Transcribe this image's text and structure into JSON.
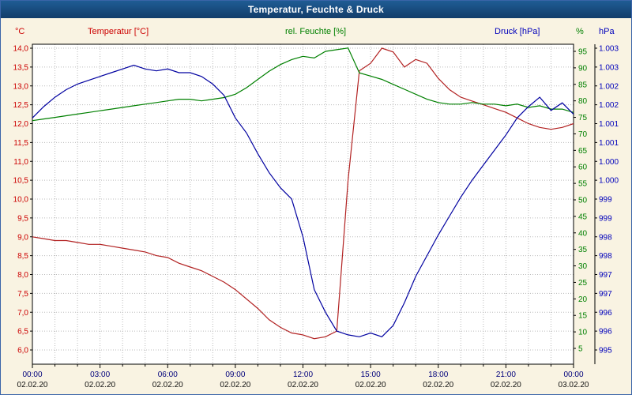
{
  "window": {
    "title": "Temperatur, Feuchte & Druck"
  },
  "colors": {
    "window_background": "#f9f3e2",
    "window_border": "#3a64a8",
    "titlebar_top": "#1f5c94",
    "titlebar_bottom": "#123d6a",
    "titlebar_text": "#ffffff",
    "plot_background": "#ffffff",
    "gridline": "#bbbbbb",
    "frame": "#000000",
    "time_label": "#00007b",
    "date_label": "#101010"
  },
  "chart_data": {
    "type": "line",
    "title": "Temperatur, Feuchte & Druck",
    "grid": "dotted, hourly vertical lines, 0.5-unit horizontal lines",
    "point_interval_minutes": 30,
    "x_start_hour": 0,
    "x_end_hour": 24,
    "x_axis": {
      "ticks": [
        {
          "time": "00:00",
          "date": "02.02.20"
        },
        {
          "time": "03:00",
          "date": "02.02.20"
        },
        {
          "time": "06:00",
          "date": "02.02.20"
        },
        {
          "time": "09:00",
          "date": "02.02.20"
        },
        {
          "time": "12:00",
          "date": "02.02.20"
        },
        {
          "time": "15:00",
          "date": "02.02.20"
        },
        {
          "time": "18:00",
          "date": "02.02.20"
        },
        {
          "time": "21:00",
          "date": "02.02.20"
        },
        {
          "time": "00:00",
          "date": "03.02.20"
        }
      ]
    },
    "axes": {
      "temperature": {
        "header": "Temperatur [°C]",
        "unit_label": "°C",
        "color": "#cc0000",
        "min": 6.0,
        "max": 14.0,
        "step": 0.5,
        "ticks": [
          "14,0",
          "13,5",
          "13,0",
          "12,5",
          "12,0",
          "11,5",
          "11,0",
          "10,5",
          "10,0",
          "9,5",
          "9,0",
          "8,5",
          "8,0",
          "7,5",
          "7,0",
          "6,5",
          "6,0"
        ]
      },
      "humidity": {
        "header": "rel. Feuchte [%]",
        "unit_label": "%",
        "color": "#008000",
        "min": 5,
        "max": 95,
        "step": 5,
        "ticks": [
          "95",
          "90",
          "85",
          "80",
          "75",
          "70",
          "65",
          "60",
          "55",
          "50",
          "45",
          "40",
          "35",
          "30",
          "25",
          "20",
          "15",
          "10",
          "5"
        ]
      },
      "pressure": {
        "header": "Druck [hPa]",
        "unit_label": "hPa",
        "color": "#0000bb",
        "min": 995.5,
        "max": 1003.5,
        "step": 0.5,
        "ticks": [
          "1.003",
          "1.003",
          "1.002",
          "1.002",
          "1.001",
          "1.001",
          "1.000",
          "1.000",
          "999",
          "999",
          "998",
          "998",
          "997",
          "997",
          "996",
          "996",
          "995"
        ]
      }
    },
    "series": [
      {
        "name": "Temperatur",
        "unit": "°C",
        "axis": "temperature",
        "color": "#b22222",
        "values": [
          9.0,
          8.95,
          8.9,
          8.9,
          8.85,
          8.8,
          8.8,
          8.75,
          8.7,
          8.65,
          8.6,
          8.5,
          8.45,
          8.3,
          8.2,
          8.1,
          7.95,
          7.8,
          7.6,
          7.35,
          7.1,
          6.8,
          6.6,
          6.45,
          6.4,
          6.3,
          6.35,
          6.5,
          10.5,
          13.4,
          13.6,
          14.0,
          13.9,
          13.5,
          13.7,
          13.6,
          13.2,
          12.9,
          12.7,
          12.6,
          12.5,
          12.4,
          12.3,
          12.15,
          12.0,
          11.9,
          11.85,
          11.9,
          12.0
        ]
      },
      {
        "name": "rel. Feuchte",
        "unit": "%",
        "axis": "humidity",
        "color": "#008000",
        "values": [
          74,
          74.5,
          75,
          75.5,
          76,
          76.5,
          77,
          77.5,
          78,
          78.5,
          79,
          79.5,
          80,
          80.5,
          80.5,
          80,
          80.5,
          81,
          82,
          84,
          86.5,
          89,
          91,
          92.5,
          93.5,
          93,
          95,
          95.5,
          96,
          88.5,
          87.5,
          86.5,
          85,
          83.5,
          82,
          80.5,
          79.5,
          79,
          79,
          79.5,
          79,
          79,
          78.5,
          79,
          78,
          78.5,
          77.5,
          77.5,
          76.5
        ]
      },
      {
        "name": "Druck",
        "unit": "hPa",
        "axis": "pressure",
        "color": "#0000a0",
        "values": [
          1001.65,
          1001.95,
          1002.2,
          1002.4,
          1002.55,
          1002.65,
          1002.75,
          1002.85,
          1002.95,
          1003.05,
          1002.95,
          1002.9,
          1002.95,
          1002.85,
          1002.85,
          1002.75,
          1002.55,
          1002.25,
          1001.65,
          1001.25,
          1000.7,
          1000.2,
          999.8,
          999.5,
          998.5,
          997.1,
          996.5,
          996.0,
          995.9,
          995.85,
          995.95,
          995.85,
          996.15,
          996.75,
          997.45,
          998.0,
          998.55,
          999.05,
          999.55,
          1000.0,
          1000.4,
          1000.8,
          1001.2,
          1001.65,
          1001.95,
          1002.2,
          1001.85,
          1002.05,
          1001.75
        ]
      }
    ]
  }
}
